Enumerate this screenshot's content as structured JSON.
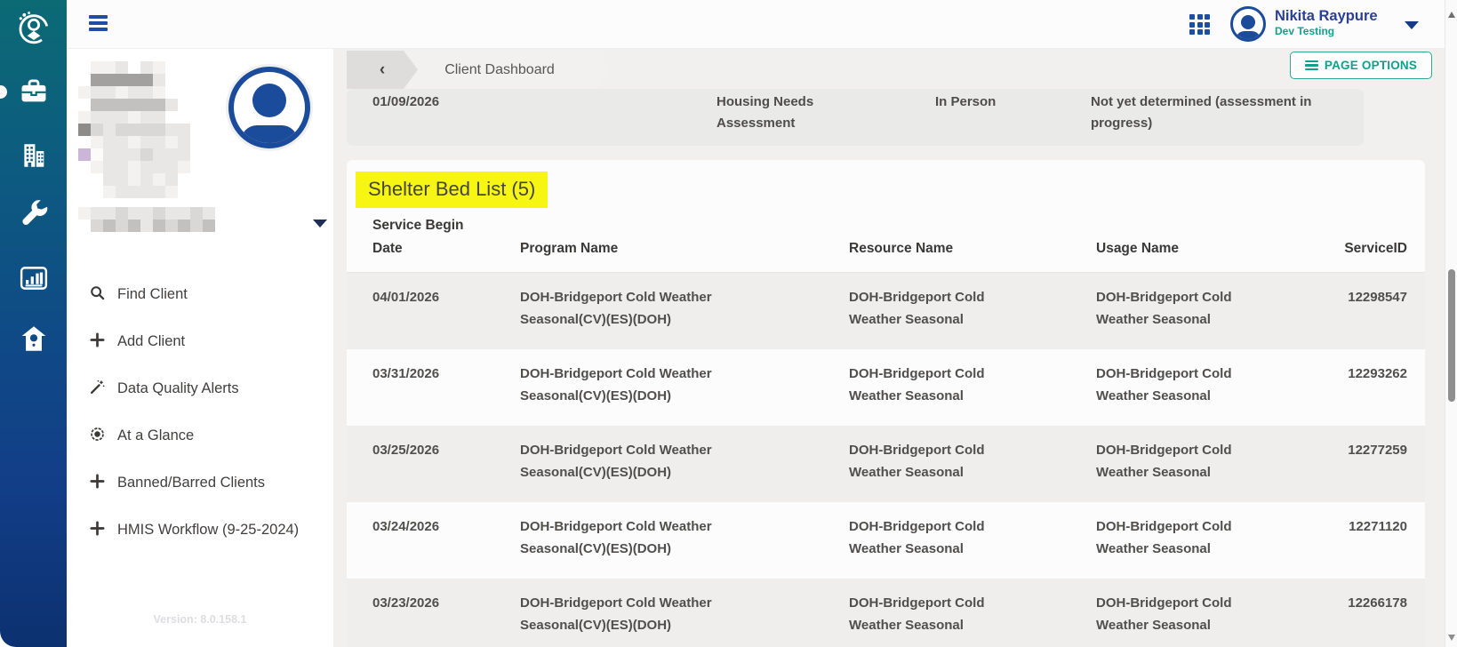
{
  "topbar": {
    "user_name": "Nikita Raypure",
    "user_role": "Dev Testing",
    "icons": [
      "hamburger-menu-icon",
      "app-grid-icon",
      "user-avatar",
      "caret-down-icon"
    ]
  },
  "breadcrumb": {
    "back_symbol": "‹",
    "title": "Client Dashboard",
    "page_options_label": "PAGE OPTIONS"
  },
  "rail": {
    "items": [
      {
        "name": "clients-logo-icon"
      },
      {
        "name": "briefcase-icon"
      },
      {
        "name": "building-icon"
      },
      {
        "name": "wrench-icon"
      },
      {
        "name": "bar-chart-icon"
      },
      {
        "name": "birdhouse-icon"
      }
    ]
  },
  "sidebar": {
    "menu": [
      {
        "icon": "search-icon",
        "label": "Find Client"
      },
      {
        "icon": "plus-icon",
        "label": "Add Client"
      },
      {
        "icon": "wand-icon",
        "label": "Data Quality Alerts"
      },
      {
        "icon": "target-icon",
        "label": "At a Glance"
      },
      {
        "icon": "plus-icon",
        "label": "Banned/Barred Clients"
      },
      {
        "icon": "plus-icon",
        "label": "HMIS Workflow (9-25-2024)"
      }
    ],
    "version": "Version: 8.0.158.1"
  },
  "assessment_row": {
    "date": "01/09/2026",
    "name": "Housing Needs Assessment",
    "mode": "In Person",
    "status": "Not yet determined (assessment in progress)"
  },
  "shelter": {
    "title": "Shelter Bed List (5)",
    "columns": [
      "Service Begin Date",
      "Program Name",
      "Resource Name",
      "Usage Name",
      "ServiceID"
    ],
    "rows": [
      {
        "date": "04/01/2026",
        "program": "DOH-Bridgeport Cold Weather Seasonal(CV)(ES)(DOH)",
        "resource": "DOH-Bridgeport Cold Weather Seasonal",
        "usage": "DOH-Bridgeport Cold Weather Seasonal",
        "service_id": "12298547"
      },
      {
        "date": "03/31/2026",
        "program": "DOH-Bridgeport Cold Weather Seasonal(CV)(ES)(DOH)",
        "resource": "DOH-Bridgeport Cold Weather Seasonal",
        "usage": "DOH-Bridgeport Cold Weather Seasonal",
        "service_id": "12293262"
      },
      {
        "date": "03/25/2026",
        "program": "DOH-Bridgeport Cold Weather Seasonal(CV)(ES)(DOH)",
        "resource": "DOH-Bridgeport Cold Weather Seasonal",
        "usage": "DOH-Bridgeport Cold Weather Seasonal",
        "service_id": "12277259"
      },
      {
        "date": "03/24/2026",
        "program": "DOH-Bridgeport Cold Weather Seasonal(CV)(ES)(DOH)",
        "resource": "DOH-Bridgeport Cold Weather Seasonal",
        "usage": "DOH-Bridgeport Cold Weather Seasonal",
        "service_id": "12271120"
      },
      {
        "date": "03/23/2026",
        "program": "DOH-Bridgeport Cold Weather Seasonal(CV)(ES)(DOH)",
        "resource": "DOH-Bridgeport Cold Weather Seasonal",
        "usage": "DOH-Bridgeport Cold Weather Seasonal",
        "service_id": "12266178"
      }
    ]
  },
  "colors": {
    "accent_teal": "#0da18c",
    "brand_blue": "#1c4fa1",
    "highlight_yellow": "#f7f612",
    "rail_gradient_top": "#0b6a74",
    "rail_gradient_bottom": "#0c3170"
  }
}
